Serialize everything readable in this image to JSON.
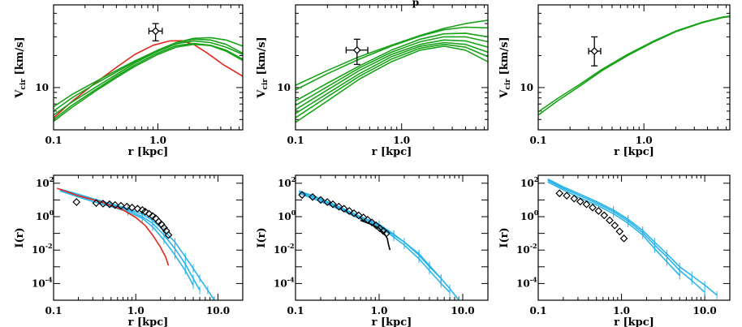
{
  "colors": {
    "green": "#1aa31a",
    "red": "#e0281c",
    "cyan": "#29b4ea",
    "black": "#000000",
    "gray": "#888888"
  },
  "top_title_fragment": "p",
  "chart_data": [
    {
      "type": "line",
      "panel": "top-left",
      "xscale": "log",
      "yscale": "log",
      "xlim": [
        0.1,
        6.5
      ],
      "ylim": [
        4,
        60
      ],
      "xticks": [
        {
          "v": 0.1,
          "label": "0.1"
        },
        {
          "v": 1.0,
          "label": "1.0"
        }
      ],
      "yticks": [
        {
          "v": 10,
          "label": "10"
        }
      ],
      "xlabel": "r [kpc]",
      "ylabel": {
        "main": "V",
        "sub": "cir",
        "rest": "[km/s]"
      },
      "series": [
        {
          "color": "red",
          "x": [
            0.1,
            0.15,
            0.25,
            0.4,
            0.6,
            0.9,
            1.3,
            1.7,
            2.2,
            3.0,
            4.2,
            6.5
          ],
          "y": [
            5.2,
            7.4,
            11.0,
            15.5,
            20.5,
            25.0,
            27.5,
            27.6,
            25.5,
            21.0,
            16.5,
            12.8
          ]
        },
        {
          "color": "green",
          "x": [
            0.1,
            0.15,
            0.25,
            0.4,
            0.6,
            1.0,
            1.5,
            2.2,
            3.2,
            4.5,
            6.5
          ],
          "y": [
            6.6,
            8.6,
            11.3,
            14.5,
            17.8,
            22.5,
            26.5,
            28.5,
            28.0,
            25.5,
            21.0
          ]
        },
        {
          "color": "green",
          "x": [
            0.1,
            0.15,
            0.25,
            0.4,
            0.6,
            1.0,
            1.5,
            2.2,
            3.2,
            4.5,
            6.5
          ],
          "y": [
            6.0,
            8.0,
            10.8,
            14.0,
            17.5,
            22.5,
            26.5,
            29.0,
            29.5,
            28.0,
            24.5
          ]
        },
        {
          "color": "green",
          "x": [
            0.1,
            0.15,
            0.25,
            0.4,
            0.6,
            1.0,
            1.5,
            2.2,
            3.2,
            4.5,
            6.5
          ],
          "y": [
            5.5,
            7.3,
            10.0,
            13.3,
            17.0,
            22.0,
            25.8,
            27.5,
            26.5,
            24.0,
            20.5
          ]
        },
        {
          "color": "green",
          "x": [
            0.1,
            0.15,
            0.25,
            0.4,
            0.6,
            1.0,
            1.5,
            2.2,
            3.2,
            4.5,
            6.5
          ],
          "y": [
            5.0,
            6.8,
            9.5,
            12.8,
            16.3,
            21.2,
            24.8,
            26.0,
            25.0,
            22.5,
            18.5
          ]
        },
        {
          "color": "green",
          "x": [
            0.1,
            0.15,
            0.25,
            0.4,
            0.6,
            1.0,
            1.5,
            2.2,
            3.2,
            4.5,
            6.5
          ],
          "y": [
            4.8,
            6.5,
            9.2,
            12.4,
            15.8,
            20.5,
            24.0,
            25.5,
            24.8,
            22.0,
            18.0
          ]
        }
      ],
      "point": {
        "x": 0.95,
        "y": 34,
        "xerr": [
          0.82,
          1.1
        ],
        "yerr": [
          27.5,
          40
        ]
      }
    },
    {
      "type": "line",
      "panel": "top-middle",
      "xscale": "log",
      "yscale": "log",
      "xlim": [
        0.1,
        6.5
      ],
      "ylim": [
        4,
        60
      ],
      "xticks": [
        {
          "v": 0.1,
          "label": "0.1"
        },
        {
          "v": 1.0,
          "label": "1.0"
        }
      ],
      "yticks": [
        {
          "v": 10,
          "label": "10"
        }
      ],
      "xlabel": "r [kpc]",
      "ylabel": {
        "main": "V",
        "sub": "cir",
        "rest": "[km/s]"
      },
      "series": [
        {
          "color": "green",
          "x": [
            0.1,
            0.2,
            0.4,
            0.8,
            1.5,
            2.5,
            4.0,
            6.5
          ],
          "y": [
            10.5,
            14.5,
            19.5,
            25.0,
            31.0,
            36.0,
            40.0,
            43.0
          ]
        },
        {
          "color": "green",
          "x": [
            0.1,
            0.2,
            0.4,
            0.8,
            1.5,
            2.5,
            4.0,
            6.5
          ],
          "y": [
            9.5,
            13.5,
            18.5,
            24.5,
            30.5,
            35.0,
            37.0,
            36.5
          ]
        },
        {
          "color": "green",
          "x": [
            0.1,
            0.2,
            0.4,
            0.8,
            1.5,
            2.5,
            4.0,
            6.5
          ],
          "y": [
            7.5,
            11.0,
            16.0,
            22.5,
            28.5,
            32.0,
            32.5,
            30.0
          ]
        },
        {
          "color": "green",
          "x": [
            0.1,
            0.2,
            0.4,
            0.8,
            1.5,
            2.5,
            4.0,
            6.5
          ],
          "y": [
            6.8,
            10.2,
            15.3,
            21.5,
            27.0,
            30.0,
            30.0,
            27.0
          ]
        },
        {
          "color": "green",
          "x": [
            0.1,
            0.2,
            0.4,
            0.8,
            1.5,
            2.5,
            4.0,
            6.5
          ],
          "y": [
            6.2,
            9.5,
            14.5,
            20.5,
            25.5,
            28.0,
            27.5,
            24.0
          ]
        },
        {
          "color": "green",
          "x": [
            0.1,
            0.2,
            0.4,
            0.8,
            1.5,
            2.5,
            4.0,
            6.5
          ],
          "y": [
            5.7,
            8.8,
            13.5,
            19.5,
            24.5,
            26.5,
            25.5,
            21.5
          ]
        },
        {
          "color": "green",
          "x": [
            0.1,
            0.2,
            0.4,
            0.8,
            1.5,
            2.5,
            4.0,
            6.5
          ],
          "y": [
            5.2,
            8.2,
            12.8,
            18.5,
            23.5,
            25.5,
            24.0,
            19.5
          ]
        },
        {
          "color": "green",
          "x": [
            0.1,
            0.2,
            0.4,
            0.8,
            1.5,
            2.5,
            4.0,
            6.5
          ],
          "y": [
            4.7,
            7.5,
            12.0,
            17.5,
            22.5,
            24.5,
            22.5,
            17.5
          ]
        }
      ],
      "point": {
        "x": 0.38,
        "y": 22.5,
        "xerr": [
          0.3,
          0.48
        ],
        "yerr": [
          16.5,
          28.5
        ]
      }
    },
    {
      "type": "line",
      "panel": "top-right",
      "xscale": "log",
      "yscale": "log",
      "xlim": [
        0.1,
        6.5
      ],
      "ylim": [
        4,
        60
      ],
      "xticks": [
        {
          "v": 0.1,
          "label": "0.1"
        },
        {
          "v": 1.0,
          "label": "1.0"
        }
      ],
      "yticks": [
        {
          "v": 10,
          "label": "10"
        }
      ],
      "xlabel": "r [kpc]",
      "ylabel": {
        "main": "V",
        "sub": "cir",
        "rest": "[km/s]"
      },
      "series": [
        {
          "color": "green",
          "x": [
            0.1,
            0.15,
            0.25,
            0.4,
            0.7,
            1.2,
            2.0,
            3.5,
            5.5,
            6.5
          ],
          "y": [
            5.9,
            7.8,
            10.8,
            14.8,
            20.5,
            27.0,
            34.0,
            41.0,
            46.0,
            47.0
          ]
        },
        {
          "color": "green",
          "x": [
            0.1,
            0.15,
            0.25,
            0.4,
            0.7,
            1.2,
            2.0,
            3.5,
            5.5,
            6.5
          ],
          "y": [
            5.5,
            7.4,
            10.4,
            14.4,
            20.0,
            26.5,
            33.5,
            40.5,
            45.5,
            46.5
          ]
        }
      ],
      "point": {
        "x": 0.34,
        "y": 22.0,
        "xerr": [
          0.3,
          0.39
        ],
        "yerr": [
          16.0,
          30.0
        ]
      }
    },
    {
      "type": "line",
      "panel": "bottom-left",
      "xscale": "log",
      "yscale": "log",
      "xlim": [
        0.1,
        20
      ],
      "ylim": [
        1e-05,
        300
      ],
      "xticks": [
        {
          "v": 0.1,
          "label": "0.1"
        },
        {
          "v": 1.0,
          "label": "1.0"
        },
        {
          "v": 10.0,
          "label": "10.0"
        }
      ],
      "yticks": [
        {
          "v": 100,
          "base": "10",
          "exp": "2"
        },
        {
          "v": 1,
          "base": "10",
          "exp": "0"
        },
        {
          "v": 0.01,
          "base": "10",
          "exp": "-2"
        },
        {
          "v": 0.0001,
          "base": "10",
          "exp": "-4"
        }
      ],
      "xlabel": "r [kpc]",
      "ylabel": "I(r)",
      "series": [
        {
          "color": "cyan",
          "x": [
            0.12,
            0.2,
            0.3,
            0.5,
            0.8,
            1.2,
            1.6,
            2.2,
            3.0,
            4.0,
            5.0,
            6.0,
            7.5,
            9.0
          ],
          "y": [
            45,
            22,
            12,
            6,
            3,
            1.4,
            0.6,
            0.15,
            0.03,
            0.004,
            0.0008,
            0.0002,
            4e-05,
            1e-05
          ]
        },
        {
          "color": "cyan",
          "x": [
            0.12,
            0.2,
            0.3,
            0.5,
            0.8,
            1.2,
            1.6,
            2.2,
            3.0,
            4.0,
            5.0,
            6.0
          ],
          "y": [
            40,
            18,
            10,
            5,
            2.5,
            1.0,
            0.4,
            0.08,
            0.012,
            0.0015,
            0.0002,
            4e-05
          ]
        },
        {
          "color": "cyan",
          "x": [
            0.12,
            0.2,
            0.3,
            0.5,
            0.8,
            1.2,
            1.6,
            2.2,
            3.0,
            4.0,
            5.0
          ],
          "y": [
            35,
            15,
            8,
            4,
            2.0,
            0.8,
            0.25,
            0.04,
            0.005,
            0.0006,
            8e-05
          ]
        },
        {
          "color": "red",
          "x": [
            0.11,
            0.2,
            0.4,
            0.7,
            1.0,
            1.3,
            1.6,
            2.0,
            2.3,
            2.5
          ],
          "y": [
            50,
            18,
            7,
            2.5,
            0.9,
            0.3,
            0.08,
            0.015,
            0.004,
            0.0012
          ]
        }
      ],
      "markers": {
        "x": [
          0.19,
          0.33,
          0.4,
          0.48,
          0.56,
          0.66,
          0.78,
          0.9,
          1.05,
          1.2,
          1.3,
          1.45,
          1.6,
          1.75,
          1.9,
          2.05,
          2.2,
          2.35,
          2.5
        ],
        "y": [
          7.5,
          6.5,
          6.0,
          5.5,
          5.0,
          4.5,
          4.0,
          3.5,
          3.0,
          2.5,
          2.0,
          1.5,
          1.1,
          0.8,
          0.5,
          0.35,
          0.22,
          0.14,
          0.08
        ]
      }
    },
    {
      "type": "line",
      "panel": "bottom-middle",
      "xscale": "log",
      "yscale": "log",
      "xlim": [
        0.1,
        20
      ],
      "ylim": [
        1e-05,
        300
      ],
      "xticks": [
        {
          "v": 0.1,
          "label": "0.1"
        },
        {
          "v": 1.0,
          "label": "1.0"
        },
        {
          "v": 10.0,
          "label": "10.0"
        }
      ],
      "yticks": [
        {
          "v": 100,
          "base": "10",
          "exp": "2"
        },
        {
          "v": 1,
          "base": "10",
          "exp": "0"
        },
        {
          "v": 0.01,
          "base": "10",
          "exp": "-2"
        },
        {
          "v": 0.0001,
          "base": "10",
          "exp": "-4"
        }
      ],
      "xlabel": "r [kpc]",
      "ylabel": "I(r)",
      "series": [
        {
          "color": "cyan",
          "x": [
            0.11,
            0.2,
            0.35,
            0.6,
            1.0,
            1.5,
            2.0,
            3.0,
            4.0,
            5.5,
            7.0,
            9.0
          ],
          "y": [
            30,
            10,
            3,
            0.9,
            0.3,
            0.08,
            0.03,
            0.005,
            0.001,
            0.0002,
            5e-05,
            1e-05
          ]
        },
        {
          "color": "cyan",
          "x": [
            0.11,
            0.2,
            0.35,
            0.6,
            1.0,
            1.5,
            2.0,
            3.0,
            4.0,
            5.5,
            7.0
          ],
          "y": [
            25,
            8,
            2.5,
            0.7,
            0.25,
            0.06,
            0.02,
            0.003,
            0.0006,
            0.0001,
            3e-05
          ]
        },
        {
          "color": "cyan",
          "x": [
            0.11,
            0.2,
            0.35,
            0.6,
            1.0,
            1.5,
            2.0,
            3.0,
            4.0,
            5.5
          ],
          "y": [
            35,
            12,
            3.5,
            1.0,
            0.35,
            0.09,
            0.03,
            0.006,
            0.0012,
            0.0002
          ]
        },
        {
          "color": "black",
          "x": [
            0.6,
            0.8,
            1.0,
            1.15,
            1.25,
            1.3,
            1.35
          ],
          "y": [
            0.6,
            0.35,
            0.2,
            0.1,
            0.05,
            0.02,
            0.01
          ]
        }
      ],
      "markers": {
        "x": [
          0.12,
          0.16,
          0.2,
          0.24,
          0.28,
          0.33,
          0.38,
          0.44,
          0.5,
          0.57,
          0.65,
          0.73,
          0.82,
          0.92,
          1.02,
          1.12,
          1.22
        ],
        "y": [
          20,
          15,
          10,
          7.5,
          5.5,
          4.0,
          3.0,
          2.2,
          1.6,
          1.2,
          0.9,
          0.65,
          0.45,
          0.3,
          0.2,
          0.14,
          0.1
        ]
      }
    },
    {
      "type": "line",
      "panel": "bottom-right",
      "xscale": "log",
      "yscale": "log",
      "xlim": [
        0.1,
        20
      ],
      "ylim": [
        1e-05,
        300
      ],
      "xticks": [
        {
          "v": 0.1,
          "label": "0.1"
        },
        {
          "v": 1.0,
          "label": "1.0"
        },
        {
          "v": 10.0,
          "label": "10.0"
        }
      ],
      "yticks": [
        {
          "v": 100,
          "base": "10",
          "exp": "2"
        },
        {
          "v": 1,
          "base": "10",
          "exp": "0"
        },
        {
          "v": 0.01,
          "base": "10",
          "exp": "-2"
        },
        {
          "v": 0.0001,
          "base": "10",
          "exp": "-4"
        }
      ],
      "xlabel": "r [kpc]",
      "ylabel": "I(r)",
      "series": [
        {
          "color": "cyan",
          "x": [
            0.13,
            0.2,
            0.3,
            0.5,
            0.8,
            1.2,
            1.8,
            2.5,
            3.5,
            5.0,
            7.0,
            10.0,
            14.0
          ],
          "y": [
            180,
            60,
            25,
            8,
            2.5,
            0.7,
            0.15,
            0.03,
            0.006,
            0.001,
            0.0003,
            8e-05,
            2e-05
          ]
        },
        {
          "color": "cyan",
          "x": [
            0.13,
            0.2,
            0.3,
            0.5,
            0.8,
            1.2,
            1.8,
            2.5,
            3.5,
            5.0,
            7.0,
            10.0
          ],
          "y": [
            150,
            50,
            20,
            6.5,
            2.0,
            0.55,
            0.11,
            0.02,
            0.004,
            0.0006,
            0.00015,
            3e-05
          ]
        },
        {
          "color": "cyan",
          "x": [
            0.13,
            0.2,
            0.3,
            0.5,
            0.8,
            1.2,
            1.8,
            2.5,
            3.5,
            5.0
          ],
          "y": [
            120,
            40,
            15,
            5,
            1.5,
            0.4,
            0.08,
            0.012,
            0.002,
            0.0003
          ]
        }
      ],
      "markers": {
        "x": [
          0.18,
          0.22,
          0.27,
          0.32,
          0.38,
          0.45,
          0.53,
          0.62,
          0.72,
          0.83,
          0.95,
          1.07
        ],
        "y": [
          25,
          18,
          12,
          8,
          5.5,
          3.5,
          2.2,
          1.2,
          0.6,
          0.3,
          0.13,
          0.05
        ]
      }
    }
  ]
}
